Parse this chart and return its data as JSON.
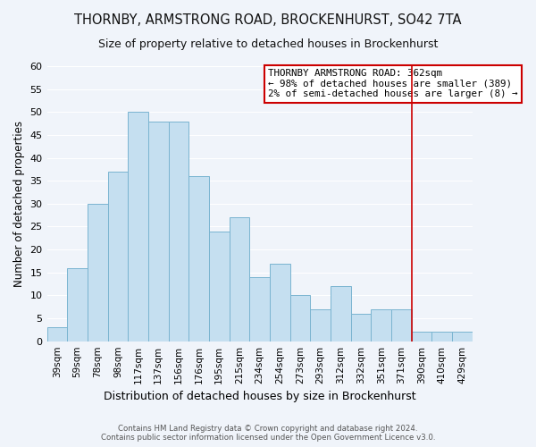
{
  "title": "THORNBY, ARMSTRONG ROAD, BROCKENHURST, SO42 7TA",
  "subtitle": "Size of property relative to detached houses in Brockenhurst",
  "xlabel": "Distribution of detached houses by size in Brockenhurst",
  "ylabel": "Number of detached properties",
  "footer1": "Contains HM Land Registry data © Crown copyright and database right 2024.",
  "footer2": "Contains public sector information licensed under the Open Government Licence v3.0.",
  "bar_labels": [
    "39sqm",
    "59sqm",
    "78sqm",
    "98sqm",
    "117sqm",
    "137sqm",
    "156sqm",
    "176sqm",
    "195sqm",
    "215sqm",
    "234sqm",
    "254sqm",
    "273sqm",
    "293sqm",
    "312sqm",
    "332sqm",
    "351sqm",
    "371sqm",
    "390sqm",
    "410sqm",
    "429sqm"
  ],
  "bar_values": [
    3,
    16,
    30,
    37,
    50,
    48,
    48,
    36,
    24,
    27,
    14,
    17,
    10,
    7,
    12,
    6,
    7,
    7,
    2,
    2,
    2
  ],
  "bar_color": "#c5dff0",
  "bar_edge_color": "#7ab4d0",
  "bg_color": "#f0f4fa",
  "grid_color": "#ffffff",
  "vline_x": 17.5,
  "vline_color": "#cc0000",
  "annotation_title": "THORNBY ARMSTRONG ROAD: 362sqm",
  "annotation_line1": "← 98% of detached houses are smaller (389)",
  "annotation_line2": "2% of semi-detached houses are larger (8) →",
  "annotation_box_edge": "#cc0000",
  "ylim": [
    0,
    60
  ],
  "yticks": [
    0,
    5,
    10,
    15,
    20,
    25,
    30,
    35,
    40,
    45,
    50,
    55,
    60
  ],
  "title_fontsize": 10.5,
  "subtitle_fontsize": 9,
  "ylabel_fontsize": 8.5,
  "xlabel_fontsize": 9
}
